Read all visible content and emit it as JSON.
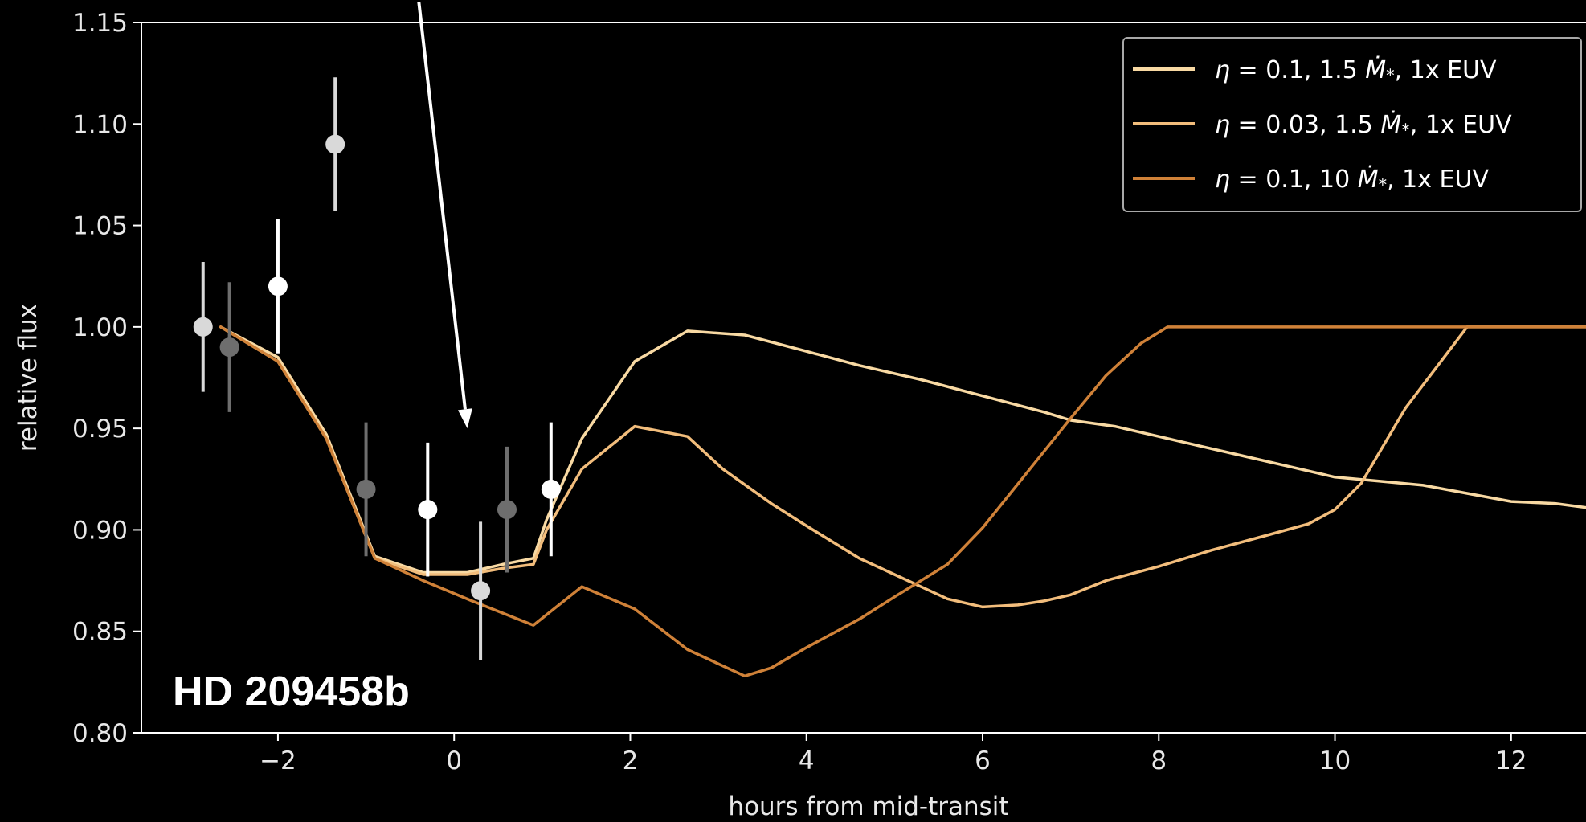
{
  "chart_data": {
    "type": "line",
    "xlabel": "hours from mid-transit",
    "ylabel": "relative flux",
    "xlim": [
      -3.55,
      12.85
    ],
    "ylim": [
      0.8,
      1.15
    ],
    "xticks": [
      -2,
      0,
      2,
      4,
      6,
      8,
      10,
      12
    ],
    "xtick_labels": [
      "−2",
      "0",
      "2",
      "4",
      "6",
      "8",
      "10",
      "12"
    ],
    "yticks": [
      0.8,
      0.85,
      0.9,
      0.95,
      1.0,
      1.05,
      1.1,
      1.15
    ],
    "ytick_labels": [
      "0.80",
      "0.85",
      "0.90",
      "0.95",
      "1.00",
      "1.05",
      "1.10",
      "1.15"
    ],
    "grid": false,
    "legend_position": "top-right",
    "annotation": "HD 209458b",
    "series": [
      {
        "name": "η = 0.1, 1.5 Ṁ*, 1x EUV",
        "legend_parts": [
          "η",
          " = 0.1, 1.5 ",
          "Ṁ",
          "*",
          ", 1x EUV"
        ],
        "color": "#f8d9a3",
        "x": [
          -2.65,
          -2.0,
          -1.45,
          -0.9,
          -0.35,
          0.15,
          0.55,
          0.9,
          1.05,
          1.45,
          2.05,
          2.65,
          3.3,
          4.0,
          4.6,
          5.3,
          6.0,
          6.7,
          7.0,
          7.5,
          8.0,
          8.5,
          9.0,
          9.5,
          10.0,
          10.5,
          11.0,
          11.5,
          12.0,
          12.5,
          12.85
        ],
        "y": [
          1.0,
          0.985,
          0.947,
          0.887,
          0.879,
          0.879,
          0.883,
          0.886,
          0.905,
          0.945,
          0.983,
          0.998,
          0.996,
          0.988,
          0.981,
          0.974,
          0.966,
          0.958,
          0.954,
          0.951,
          0.946,
          0.941,
          0.936,
          0.931,
          0.926,
          0.924,
          0.922,
          0.918,
          0.914,
          0.913,
          0.911
        ]
      },
      {
        "name": "η = 0.03, 1.5 Ṁ*, 1x EUV",
        "legend_parts": [
          "η",
          " = 0.03, 1.5 ",
          "Ṁ",
          "*",
          ", 1x EUV"
        ],
        "color": "#f2bd7c",
        "x": [
          -2.65,
          -2.0,
          -1.45,
          -0.9,
          -0.35,
          0.15,
          0.55,
          0.9,
          1.05,
          1.45,
          2.05,
          2.65,
          3.05,
          3.6,
          4.0,
          4.6,
          5.0,
          5.6,
          6.0,
          6.4,
          6.7,
          7.0,
          7.4,
          8.0,
          8.6,
          9.2,
          9.7,
          10.0,
          10.3,
          10.8,
          11.5,
          12.0,
          12.85
        ],
        "y": [
          1.0,
          0.983,
          0.945,
          0.886,
          0.878,
          0.878,
          0.881,
          0.883,
          0.9,
          0.93,
          0.951,
          0.946,
          0.93,
          0.913,
          0.902,
          0.886,
          0.878,
          0.866,
          0.862,
          0.863,
          0.865,
          0.868,
          0.875,
          0.882,
          0.89,
          0.897,
          0.903,
          0.91,
          0.923,
          0.96,
          1.0,
          1.0,
          1.0
        ]
      },
      {
        "name": "η = 0.1, 10 Ṁ*, 1x EUV",
        "legend_parts": [
          "η",
          " = 0.1, 10 ",
          "Ṁ",
          "*",
          ", 1x EUV"
        ],
        "color": "#cf8138",
        "x": [
          -2.65,
          -2.0,
          -1.45,
          -0.9,
          -0.35,
          0.2,
          0.9,
          1.45,
          2.05,
          2.65,
          3.3,
          3.6,
          4.0,
          4.6,
          5.0,
          5.6,
          6.0,
          6.5,
          7.0,
          7.4,
          7.8,
          8.1,
          8.5,
          9.0,
          10.0,
          11.0,
          12.0,
          12.85
        ],
        "y": [
          1.0,
          0.983,
          0.945,
          0.886,
          0.875,
          0.865,
          0.853,
          0.872,
          0.861,
          0.841,
          0.828,
          0.832,
          0.842,
          0.856,
          0.867,
          0.883,
          0.901,
          0.928,
          0.955,
          0.976,
          0.992,
          1.0,
          1.0,
          1.0,
          1.0,
          1.0,
          1.0,
          1.0
        ]
      }
    ],
    "observations": [
      {
        "x": -2.85,
        "y": 1.0,
        "err": 0.032,
        "color": "#d9d9d9"
      },
      {
        "x": -2.55,
        "y": 0.99,
        "err": 0.032,
        "color": "#6e6e6e"
      },
      {
        "x": -2.0,
        "y": 1.02,
        "err": 0.033,
        "color": "#ffffff"
      },
      {
        "x": -1.35,
        "y": 1.09,
        "err": 0.033,
        "color": "#d9d9d9"
      },
      {
        "x": -1.0,
        "y": 0.92,
        "err": 0.033,
        "color": "#6e6e6e"
      },
      {
        "x": -0.3,
        "y": 0.91,
        "err": 0.033,
        "color": "#ffffff"
      },
      {
        "x": 0.3,
        "y": 0.87,
        "err": 0.034,
        "color": "#d9d9d9"
      },
      {
        "x": 0.6,
        "y": 0.91,
        "err": 0.031,
        "color": "#6e6e6e"
      },
      {
        "x": 1.1,
        "y": 0.92,
        "err": 0.033,
        "color": "#ffffff"
      }
    ],
    "arrow": {
      "from": [
        -0.4,
        1.16
      ],
      "to": [
        0.15,
        0.95
      ],
      "color": "#ffffff"
    }
  }
}
